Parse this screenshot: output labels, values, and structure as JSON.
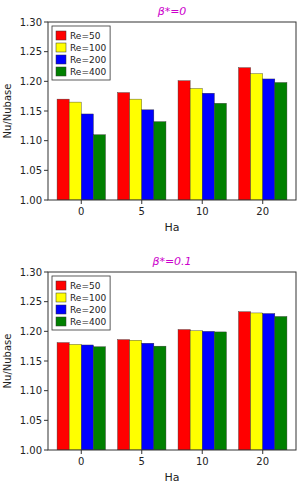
{
  "chart_data": [
    {
      "type": "bar",
      "title": "β*=0",
      "xlabel": "Ha",
      "ylabel": "Nu/Nubase",
      "categories": [
        "0",
        "5",
        "10",
        "20"
      ],
      "series": [
        {
          "name": "Re=50",
          "color": "red",
          "values": [
            1.17,
            1.181,
            1.201,
            1.223
          ]
        },
        {
          "name": "Re=100",
          "color": "yellow",
          "values": [
            1.165,
            1.17,
            1.188,
            1.213
          ]
        },
        {
          "name": "Re=200",
          "color": "blue",
          "values": [
            1.145,
            1.152,
            1.18,
            1.204
          ]
        },
        {
          "name": "Re=400",
          "color": "green",
          "values": [
            1.11,
            1.132,
            1.163,
            1.198
          ]
        }
      ],
      "ylim": [
        1.0,
        1.3
      ],
      "yticks": [
        {
          "value": 1.0,
          "label": "1.00"
        },
        1.05,
        {
          "value": 1.1,
          "label": "1.10"
        },
        1.15,
        {
          "value": 1.2,
          "label": "1.20"
        },
        1.25,
        {
          "value": 1.3,
          "label": "1.30"
        }
      ],
      "grid": false,
      "legend": "upper left"
    },
    {
      "type": "bar",
      "title": "β*=0.1",
      "xlabel": "Ha",
      "ylabel": "Nu/Nubase",
      "categories": [
        "0",
        "5",
        "10",
        "20"
      ],
      "series": [
        {
          "name": "Re=50",
          "color": "red",
          "values": [
            1.181,
            1.186,
            1.203,
            1.233
          ]
        },
        {
          "name": "Re=100",
          "color": "yellow",
          "values": [
            1.178,
            1.185,
            1.201,
            1.231
          ]
        },
        {
          "name": "Re=200",
          "color": "blue",
          "values": [
            1.177,
            1.18,
            1.2,
            1.23
          ]
        },
        {
          "name": "Re=400",
          "color": "green",
          "values": [
            1.174,
            1.175,
            1.199,
            1.225
          ]
        }
      ],
      "ylim": [
        1.0,
        1.3
      ],
      "yticks": [
        {
          "value": 1.0,
          "label": "1.00"
        },
        1.05,
        {
          "value": 1.1,
          "label": "1.10"
        },
        1.15,
        {
          "value": 1.2,
          "label": "1.20"
        },
        1.25,
        {
          "value": 1.3,
          "label": "1.30"
        }
      ],
      "grid": false,
      "legend": "upper left"
    }
  ]
}
